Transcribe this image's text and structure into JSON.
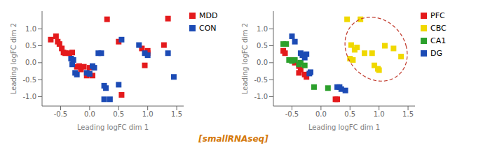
{
  "chart_data": [
    {
      "type": "scatter",
      "xlabel": "Leading logFC dim 1",
      "ylabel": "Leading logFC dim 2",
      "xlim": [
        -0.82,
        1.62
      ],
      "ylim": [
        -1.28,
        1.52
      ],
      "xticks": [
        -0.5,
        {
          "value": 0,
          "label": "0.0"
        },
        0.5,
        {
          "value": 1,
          "label": "1.0"
        },
        1.5
      ],
      "yticks": [
        {
          "value": -1,
          "label": "-1.0"
        },
        -0.5,
        {
          "value": 0,
          "label": "0.0"
        },
        0.5,
        {
          "value": 1,
          "label": "1.0"
        }
      ],
      "grid": false,
      "marker": "square",
      "series": [
        {
          "name": "MDD",
          "color": "#e41a1c",
          "values": [
            [
              -0.67,
              0.68
            ],
            [
              -0.58,
              0.78
            ],
            [
              -0.55,
              0.62
            ],
            [
              -0.52,
              0.55
            ],
            [
              -0.48,
              0.42
            ],
            [
              -0.45,
              0.3
            ],
            [
              -0.42,
              0.28
            ],
            [
              -0.35,
              0.28
            ],
            [
              -0.3,
              0.3
            ],
            [
              -0.18,
              -0.1
            ],
            [
              -0.22,
              -0.12
            ],
            [
              -0.1,
              -0.12
            ],
            [
              -0.15,
              -0.2
            ],
            [
              -0.05,
              -0.38
            ],
            [
              0.0,
              -0.15
            ],
            [
              0.05,
              -0.38
            ],
            [
              0.3,
              1.28
            ],
            [
              0.5,
              0.62
            ],
            [
              0.55,
              -0.95
            ],
            [
              0.9,
              0.42
            ],
            [
              1.0,
              0.35
            ],
            [
              1.0,
              0.28
            ],
            [
              0.95,
              -0.08
            ],
            [
              1.28,
              0.52
            ],
            [
              1.35,
              1.3
            ]
          ]
        },
        {
          "name": "CON",
          "color": "#1c4bb5",
          "values": [
            [
              -0.32,
              0.12
            ],
            [
              -0.28,
              0.08
            ],
            [
              -0.3,
              -0.05
            ],
            [
              -0.25,
              -0.3
            ],
            [
              -0.22,
              -0.35
            ],
            [
              -0.05,
              -0.3
            ],
            [
              0.0,
              -0.33
            ],
            [
              0.08,
              -0.15
            ],
            [
              0.05,
              -0.1
            ],
            [
              0.15,
              0.28
            ],
            [
              0.2,
              0.28
            ],
            [
              0.25,
              -0.68
            ],
            [
              0.28,
              -0.75
            ],
            [
              0.5,
              -0.65
            ],
            [
              0.25,
              -1.08
            ],
            [
              0.35,
              -1.08
            ],
            [
              0.55,
              0.68
            ],
            [
              0.85,
              0.52
            ],
            [
              0.95,
              0.28
            ],
            [
              1.0,
              0.22
            ],
            [
              1.35,
              0.28
            ],
            [
              1.45,
              -0.42
            ]
          ]
        }
      ]
    },
    {
      "type": "scatter",
      "xlabel": "Leading logFC dim 1",
      "ylabel": "Leading logFC dim 2",
      "xlim": [
        -0.82,
        1.62
      ],
      "ylim": [
        -1.28,
        1.52
      ],
      "xticks": [
        -0.5,
        {
          "value": 0,
          "label": "0.0"
        },
        0.5,
        {
          "value": 1,
          "label": "1.0"
        },
        1.5
      ],
      "yticks": [
        {
          "value": -1,
          "label": "-1.0"
        },
        -0.5,
        {
          "value": 0,
          "label": "0.0"
        },
        0.5,
        {
          "value": 1,
          "label": "1.0"
        }
      ],
      "grid": false,
      "marker": "square",
      "series": [
        {
          "name": "PFC",
          "color": "#e41a1c",
          "values": [
            [
              -0.65,
              0.35
            ],
            [
              -0.62,
              0.28
            ],
            [
              -0.5,
              0.08
            ],
            [
              -0.45,
              0.0
            ],
            [
              -0.38,
              -0.1
            ],
            [
              -0.35,
              -0.2
            ],
            [
              -0.38,
              -0.3
            ],
            [
              -0.28,
              -0.35
            ],
            [
              -0.25,
              -0.42
            ],
            [
              0.25,
              -1.08
            ],
            [
              0.28,
              -1.08
            ]
          ]
        },
        {
          "name": "CBC",
          "color": "#f0d800",
          "values": [
            [
              0.45,
              1.28
            ],
            [
              0.68,
              1.28
            ],
            [
              0.52,
              0.52
            ],
            [
              0.62,
              0.45
            ],
            [
              0.58,
              0.38
            ],
            [
              0.5,
              0.12
            ],
            [
              0.55,
              0.08
            ],
            [
              0.75,
              0.28
            ],
            [
              0.88,
              0.28
            ],
            [
              0.92,
              -0.08
            ],
            [
              0.98,
              -0.18
            ],
            [
              1.0,
              -0.22
            ],
            [
              1.1,
              0.5
            ],
            [
              1.25,
              0.42
            ],
            [
              1.38,
              0.18
            ]
          ]
        },
        {
          "name": "CA1",
          "color": "#2ca02c",
          "values": [
            [
              -0.65,
              0.55
            ],
            [
              -0.6,
              0.55
            ],
            [
              -0.55,
              0.08
            ],
            [
              -0.5,
              0.05
            ],
            [
              -0.45,
              0.08
            ],
            [
              -0.35,
              0.0
            ],
            [
              -0.38,
              -0.05
            ],
            [
              -0.28,
              -0.08
            ],
            [
              -0.12,
              -0.72
            ],
            [
              0.12,
              -0.75
            ]
          ]
        },
        {
          "name": "DG",
          "color": "#1c4bb5",
          "values": [
            [
              -0.5,
              0.78
            ],
            [
              -0.45,
              0.62
            ],
            [
              -0.35,
              0.28
            ],
            [
              -0.32,
              0.22
            ],
            [
              -0.25,
              0.25
            ],
            [
              -0.28,
              0.15
            ],
            [
              -0.18,
              -0.28
            ],
            [
              -0.2,
              -0.32
            ],
            [
              0.28,
              -0.72
            ],
            [
              0.32,
              -0.72
            ],
            [
              0.35,
              -0.78
            ],
            [
              0.42,
              -0.82
            ]
          ]
        }
      ],
      "ellipse": {
        "cx": 0.95,
        "cy": 0.4,
        "width": 1.05,
        "height": 1.9,
        "angle": 8,
        "color": "#c0392b",
        "line_style": "dashed"
      }
    }
  ],
  "annotation": {
    "text": "[smallRNAseq]",
    "color": "#d4780a"
  }
}
